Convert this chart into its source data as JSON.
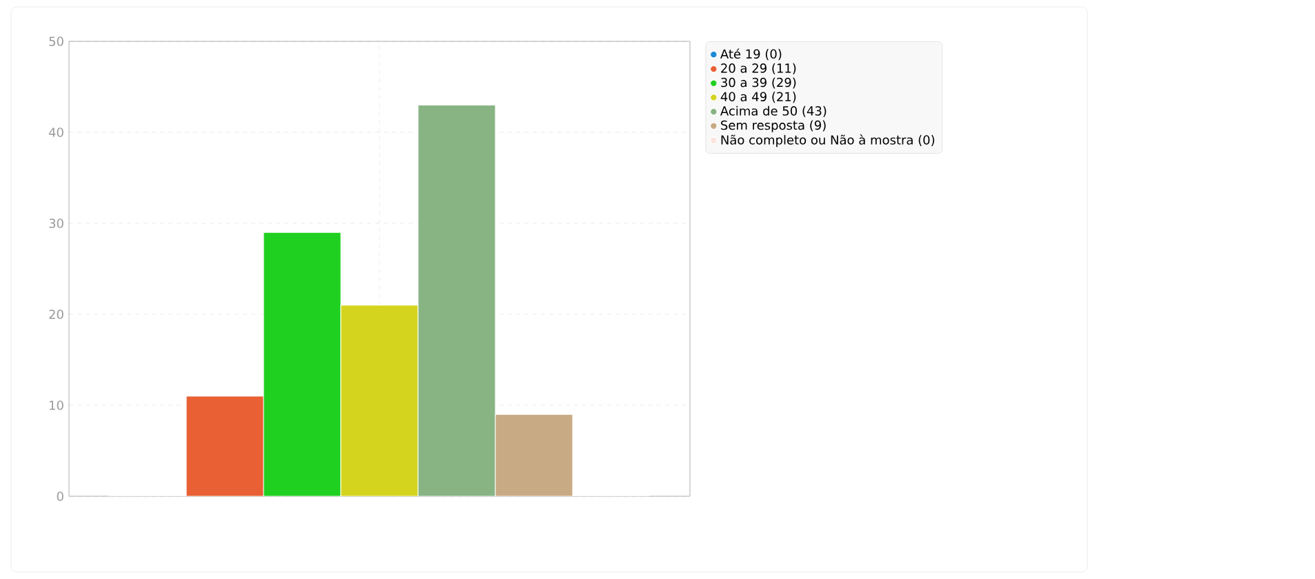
{
  "chart_data": {
    "type": "bar",
    "categories": [
      null
    ],
    "series": [
      {
        "name": "Até 19 (0)",
        "color": "#1e88d8",
        "values": [
          0
        ]
      },
      {
        "name": "20 a 29 (11)",
        "color": "#e86034",
        "values": [
          11
        ]
      },
      {
        "name": "30 a 39 (29)",
        "color": "#20d020",
        "values": [
          29
        ]
      },
      {
        "name": "40 a 49 (21)",
        "color": "#d4d41e",
        "values": [
          21
        ]
      },
      {
        "name": "Acima de 50 (43)",
        "color": "#88b484",
        "values": [
          43
        ]
      },
      {
        "name": "Sem resposta (9)",
        "color": "#c8aa84",
        "values": [
          9
        ]
      },
      {
        "name": "Não completo ou Não à mostra (0)",
        "color": "#fbe4dc",
        "values": [
          0
        ]
      }
    ],
    "ylim": [
      0,
      50
    ],
    "yticks": [
      0,
      10,
      20,
      30,
      40,
      50
    ],
    "grid": true,
    "legend": "right",
    "tick_labels": "y"
  }
}
